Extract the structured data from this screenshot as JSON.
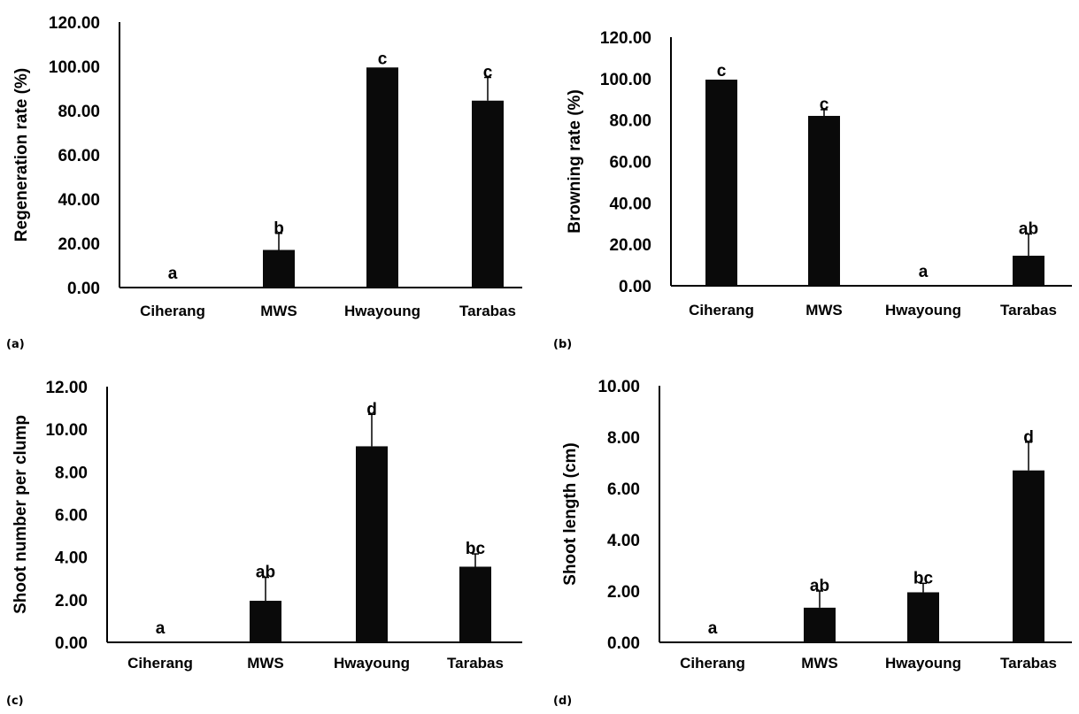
{
  "colors": {
    "bar": "#0a0a0a",
    "axis": "#000000",
    "error": "#000000"
  },
  "chart_data": [
    {
      "id": "a",
      "type": "bar",
      "panel_label": "(a)",
      "title": "",
      "xlabel": "",
      "ylabel": "Regeneration rate (%)",
      "ylim": [
        0,
        120
      ],
      "yticks": [
        "0.00",
        "20.00",
        "40.00",
        "60.00",
        "80.00",
        "100.00",
        "120.00"
      ],
      "categories": [
        "Ciherang",
        "MWS",
        "Hwayoung",
        "Tarabas"
      ],
      "values": [
        0,
        17,
        99.5,
        84.5
      ],
      "errors": [
        0,
        7.5,
        0,
        10.5
      ],
      "sig_labels": [
        "a",
        "b",
        "c",
        "c"
      ],
      "grid": false,
      "legend": "none"
    },
    {
      "id": "b",
      "type": "bar",
      "panel_label": "(b)",
      "title": "",
      "xlabel": "",
      "ylabel": "Browning rate (%)",
      "ylim": [
        0,
        120
      ],
      "yticks": [
        "0.00",
        "20.00",
        "40.00",
        "60.00",
        "80.00",
        "100.00",
        "120.00"
      ],
      "categories": [
        "Ciherang",
        "MWS",
        "Hwayoung",
        "Tarabas"
      ],
      "values": [
        99.5,
        82,
        0,
        14.5
      ],
      "errors": [
        0,
        3,
        0,
        10.5
      ],
      "sig_labels": [
        "c",
        "c",
        "a",
        "ab"
      ],
      "grid": false,
      "legend": "none"
    },
    {
      "id": "c",
      "type": "bar",
      "panel_label": "(c)",
      "title": "",
      "xlabel": "",
      "ylabel": "Shoot number per clump",
      "ylim": [
        0,
        12
      ],
      "yticks": [
        "0.00",
        "2.00",
        "4.00",
        "6.00",
        "8.00",
        "10.00",
        "12.00"
      ],
      "categories": [
        "Ciherang",
        "MWS",
        "Hwayoung",
        "Tarabas"
      ],
      "values": [
        0,
        1.95,
        9.2,
        3.55
      ],
      "errors": [
        0,
        1.1,
        1.5,
        0.6
      ],
      "sig_labels": [
        "a",
        "ab",
        "d",
        "bc"
      ],
      "grid": false,
      "legend": "none"
    },
    {
      "id": "d",
      "type": "bar",
      "panel_label": "(d)",
      "title": "",
      "xlabel": "",
      "ylabel": "Shoot length (cm)",
      "ylim": [
        0,
        10
      ],
      "yticks": [
        "0.00",
        "2.00",
        "4.00",
        "6.00",
        "8.00",
        "10.00"
      ],
      "categories": [
        "Ciherang",
        "MWS",
        "Hwayoung",
        "Tarabas"
      ],
      "values": [
        0,
        1.35,
        1.95,
        6.7
      ],
      "errors": [
        0,
        0.65,
        0.35,
        1.1
      ],
      "sig_labels": [
        "a",
        "ab",
        "bc",
        "d"
      ],
      "grid": false,
      "legend": "none"
    }
  ]
}
